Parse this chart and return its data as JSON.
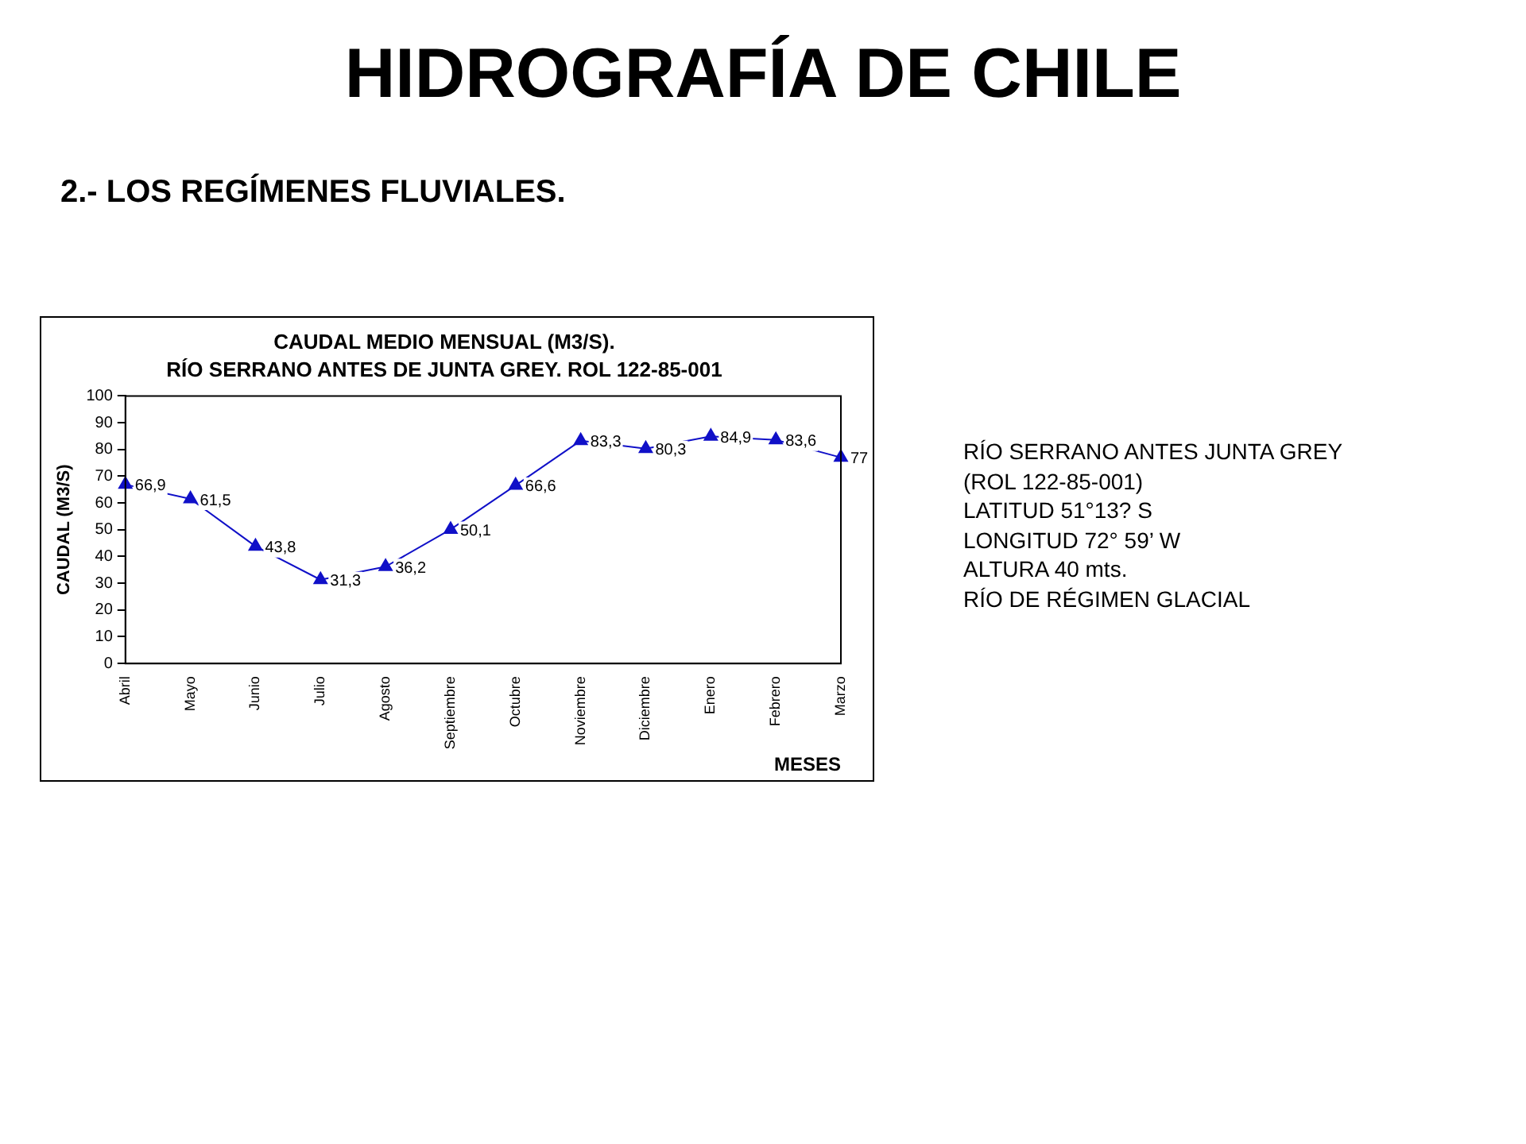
{
  "chart_data": {
    "type": "line",
    "title": "CAUDAL MEDIO MENSUAL (M3/S).",
    "subtitle": "RÍO SERRANO ANTES DE JUNTA GREY. ROL 122-85-001",
    "xlabel": "MESES",
    "ylabel": "CAUDAL (M3/S)",
    "categories": [
      "Abril",
      "Mayo",
      "Junio",
      "Julio",
      "Agosto",
      "Septiembre",
      "Octubre",
      "Noviembre",
      "Diciembre",
      "Enero",
      "Febrero",
      "Marzo"
    ],
    "series": [
      {
        "color": "#1010c8",
        "values": [
          66.9,
          61.5,
          43.8,
          31.3,
          36.2,
          50.1,
          66.6,
          83.3,
          80.3,
          84.9,
          83.6,
          77
        ],
        "value_labels": [
          "66,9",
          "61,5",
          "43,8",
          "31,3",
          "36,2",
          "50,1",
          "66,6",
          "83,3",
          "80,3",
          "84,9",
          "83,6",
          "77"
        ]
      }
    ],
    "ylim": [
      0,
      100
    ],
    "yticks": [
      0,
      10,
      20,
      30,
      40,
      50,
      60,
      70,
      80,
      90,
      100
    ],
    "grid": false,
    "legend": false,
    "marker": "triangle",
    "line_style": "solid",
    "annotations": [
      "HIDROGRAFÍA DE CHILE",
      "2.- LOS REGÍMENES FLUVIALES.",
      "RÍO SERRANO ANTES JUNTA GREY",
      "(ROL 122-85-001)",
      "LATITUD 51°13? S",
      "LONGITUD 72° 59’ W",
      "ALTURA 40 mts.",
      "RÍO DE RÉGIMEN GLACIAL"
    ]
  }
}
